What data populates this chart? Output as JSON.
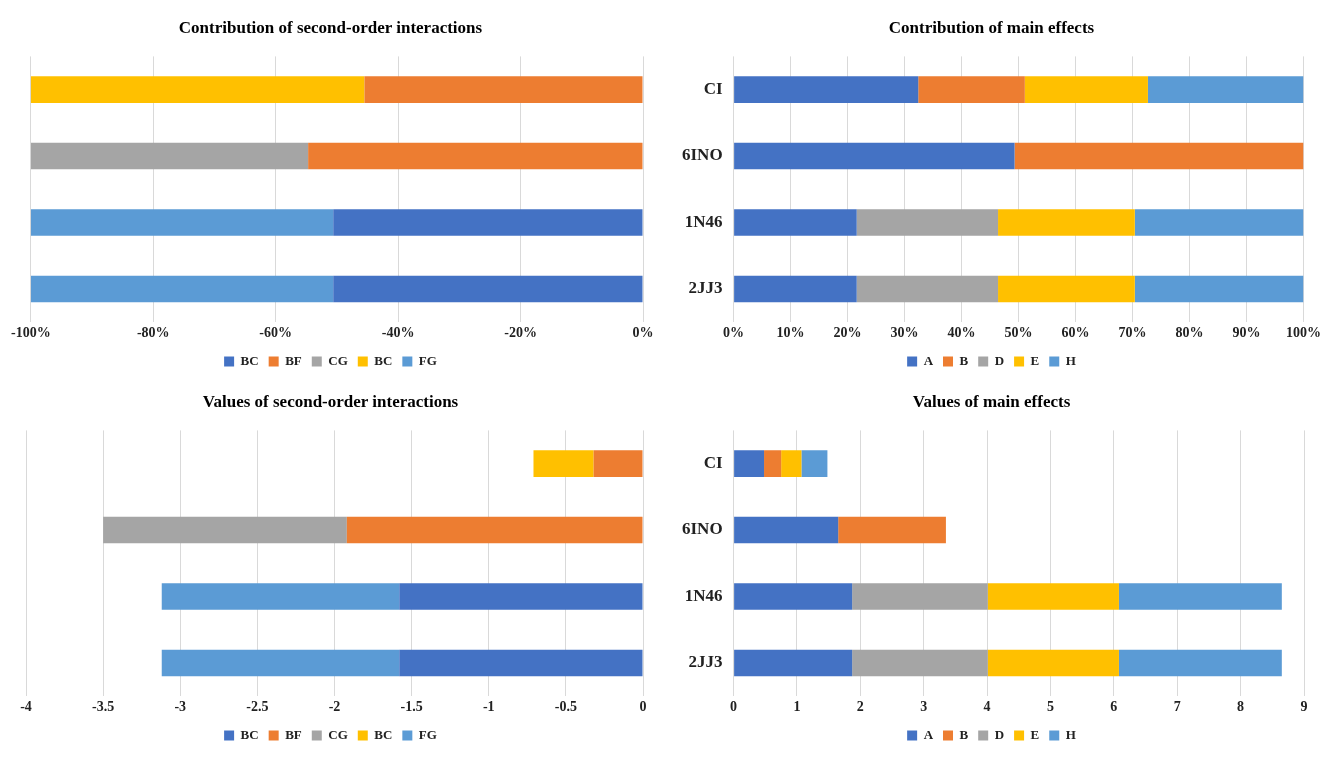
{
  "chart_data": [
    {
      "type": "bar",
      "orientation": "horizontal",
      "stacked": true,
      "title": "Contribution of second-order interactions",
      "categories": [
        null,
        null,
        null,
        null
      ],
      "tick_labels": "x",
      "grid": "x",
      "legend": "bottom",
      "xlim": [
        -100,
        0
      ],
      "xticks": [
        {
          "value": -100,
          "label": "-100%"
        },
        {
          "value": -80,
          "label": "-80%"
        },
        {
          "value": -60,
          "label": "-60%"
        },
        {
          "value": -40,
          "label": "-40%"
        },
        {
          "value": -20,
          "label": "-20%"
        },
        {
          "value": 0,
          "label": "0%"
        }
      ],
      "series": [
        {
          "name": "BC",
          "color": "#4472c4",
          "values": [
            null,
            null,
            -50.6,
            -50.6
          ]
        },
        {
          "name": "BF",
          "color": "#ed7d31",
          "values": [
            -45.5,
            -54.7,
            null,
            null
          ]
        },
        {
          "name": "CG",
          "color": "#a5a5a5",
          "values": [
            null,
            -45.3,
            null,
            null
          ]
        },
        {
          "name": "BC",
          "color": "#ffc000",
          "values": [
            -54.5,
            null,
            null,
            null
          ]
        },
        {
          "name": "FG",
          "color": "#5b9bd5",
          "values": [
            null,
            null,
            -49.4,
            -49.4
          ]
        }
      ]
    },
    {
      "type": "bar",
      "orientation": "horizontal",
      "stacked": true,
      "title": "Contribution of main effects",
      "categories": [
        "CI",
        "6INO",
        "1N46",
        "2JJ3"
      ],
      "grid": "x",
      "legend": "bottom",
      "xlim": [
        0,
        100
      ],
      "xticks": [
        {
          "value": 0,
          "label": "0%"
        },
        {
          "value": 10,
          "label": "10%"
        },
        {
          "value": 20,
          "label": "20%"
        },
        {
          "value": 30,
          "label": "30%"
        },
        {
          "value": 40,
          "label": "40%"
        },
        {
          "value": 50,
          "label": "50%"
        },
        {
          "value": 60,
          "label": "60%"
        },
        {
          "value": 70,
          "label": "70%"
        },
        {
          "value": 80,
          "label": "80%"
        },
        {
          "value": 90,
          "label": "90%"
        },
        {
          "value": 100,
          "label": "100%"
        }
      ],
      "series": [
        {
          "name": "A",
          "color": "#4472c4",
          "values": [
            32.4,
            49.3,
            21.6,
            21.6
          ]
        },
        {
          "name": "B",
          "color": "#ed7d31",
          "values": [
            18.7,
            50.7,
            null,
            null
          ]
        },
        {
          "name": "D",
          "color": "#a5a5a5",
          "values": [
            null,
            null,
            24.8,
            24.8
          ]
        },
        {
          "name": "E",
          "color": "#ffc000",
          "values": [
            21.6,
            null,
            24.0,
            24.0
          ]
        },
        {
          "name": "H",
          "color": "#5b9bd5",
          "values": [
            27.3,
            null,
            29.6,
            29.6
          ]
        }
      ]
    },
    {
      "type": "bar",
      "orientation": "horizontal",
      "stacked": true,
      "title": "Values of second-order interactions",
      "categories": [
        null,
        null,
        null,
        null
      ],
      "tick_labels": "x",
      "grid": "x",
      "legend": "bottom",
      "xlim": [
        -4,
        0
      ],
      "xticks": [
        -4,
        -3.5,
        -3,
        -2.5,
        -2,
        -1.5,
        -1,
        -0.5,
        0
      ],
      "series": [
        {
          "name": "BC",
          "color": "#4472c4",
          "values": [
            null,
            null,
            -1.58,
            -1.58
          ]
        },
        {
          "name": "BF",
          "color": "#ed7d31",
          "values": [
            -0.32,
            -1.92,
            null,
            null
          ]
        },
        {
          "name": "CG",
          "color": "#a5a5a5",
          "values": [
            null,
            -1.58,
            null,
            null
          ]
        },
        {
          "name": "BC",
          "color": "#ffc000",
          "values": [
            -0.39,
            null,
            null,
            null
          ]
        },
        {
          "name": "FG",
          "color": "#5b9bd5",
          "values": [
            null,
            null,
            -1.54,
            -1.54
          ]
        }
      ]
    },
    {
      "type": "bar",
      "orientation": "horizontal",
      "stacked": true,
      "title": "Values of main effects",
      "categories": [
        "CI",
        "6INO",
        "1N46",
        "2JJ3"
      ],
      "grid": "x",
      "legend": "bottom",
      "xlim": [
        0,
        9
      ],
      "xticks": [
        0,
        1,
        2,
        3,
        4,
        5,
        6,
        7,
        8,
        9
      ],
      "series": [
        {
          "name": "A",
          "color": "#4472c4",
          "values": [
            0.48,
            1.65,
            1.87,
            1.87
          ]
        },
        {
          "name": "B",
          "color": "#ed7d31",
          "values": [
            0.27,
            1.7,
            null,
            null
          ]
        },
        {
          "name": "D",
          "color": "#a5a5a5",
          "values": [
            null,
            null,
            2.14,
            2.14
          ]
        },
        {
          "name": "E",
          "color": "#ffc000",
          "values": [
            0.32,
            null,
            2.07,
            2.07
          ]
        },
        {
          "name": "H",
          "color": "#5b9bd5",
          "values": [
            0.41,
            null,
            2.57,
            2.57
          ]
        }
      ]
    }
  ]
}
